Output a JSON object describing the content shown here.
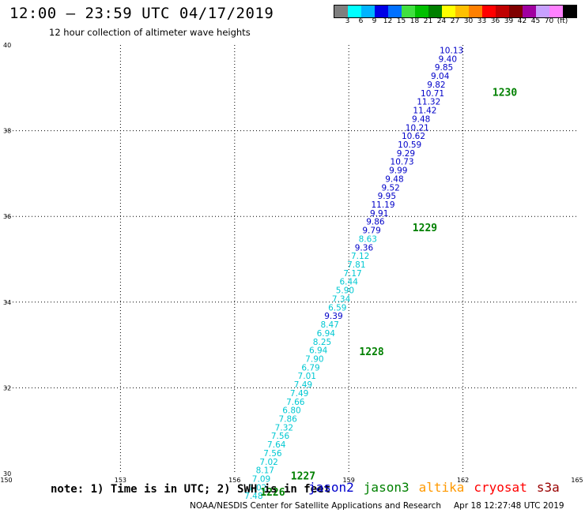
{
  "title": "12:00 – 23:59 UTC 04/17/2019",
  "subtitle": "12 hour collection of altimeter wave heights",
  "colorbar": {
    "colors": [
      "#7f7f7f",
      "#00ffff",
      "#00b4ff",
      "#0000e6",
      "#0070ff",
      "#40e040",
      "#00c000",
      "#008000",
      "#ffff00",
      "#ffc000",
      "#ff8000",
      "#ff0000",
      "#c00000",
      "#800000",
      "#a000a0",
      "#c8a0ff",
      "#ff80ff",
      "#000000"
    ],
    "ticks": [
      "3",
      "6",
      "9",
      "12",
      "15",
      "18",
      "21",
      "24",
      "27",
      "30",
      "33",
      "36",
      "39",
      "42",
      "45",
      "70",
      "(ft)"
    ]
  },
  "note": "note: 1) Time is in UTC; 2) SWH is in feet",
  "satellites": [
    {
      "name": "jason2",
      "color": "#0000cc"
    },
    {
      "name": "jason3",
      "color": "#008000"
    },
    {
      "name": "altika",
      "color": "#ff9900"
    },
    {
      "name": "cryosat",
      "color": "#ff0000"
    },
    {
      "name": "s3a",
      "color": "#990000"
    }
  ],
  "credit": "NOAA/NESDIS Center for Satellite Applications and Research",
  "timestamp": "Apr 18 12:27:48 UTC 2019",
  "chart_data": {
    "type": "scatter",
    "xlim": [
      150,
      165
    ],
    "ylim": [
      30,
      40
    ],
    "x_ticks": [
      "150",
      "153",
      "156",
      "159",
      "162",
      "165"
    ],
    "y_ticks": [
      "30",
      "32",
      "34",
      "36",
      "38",
      "40"
    ],
    "grid": true,
    "colors": {
      "light": "#00c8d2",
      "dark": "#0000c8",
      "time": "#008000"
    },
    "points": [
      {
        "x": 161.7,
        "y": 39.88,
        "v": "10.13",
        "c": "dark"
      },
      {
        "x": 161.6,
        "y": 39.68,
        "v": "9.40",
        "c": "dark"
      },
      {
        "x": 161.5,
        "y": 39.48,
        "v": "9.85",
        "c": "dark"
      },
      {
        "x": 161.4,
        "y": 39.28,
        "v": "9.04",
        "c": "dark"
      },
      {
        "x": 161.3,
        "y": 39.08,
        "v": "9.82",
        "c": "dark"
      },
      {
        "x": 161.2,
        "y": 38.88,
        "v": "10.71",
        "c": "dark"
      },
      {
        "x": 161.1,
        "y": 38.68,
        "v": "11.32",
        "c": "dark"
      },
      {
        "x": 161.0,
        "y": 38.48,
        "v": "11.42",
        "c": "dark"
      },
      {
        "x": 160.9,
        "y": 38.28,
        "v": "9.48",
        "c": "dark"
      },
      {
        "x": 160.8,
        "y": 38.08,
        "v": "10.21",
        "c": "dark"
      },
      {
        "x": 160.7,
        "y": 37.88,
        "v": "10.62",
        "c": "dark"
      },
      {
        "x": 160.6,
        "y": 37.68,
        "v": "10.59",
        "c": "dark"
      },
      {
        "x": 160.5,
        "y": 37.48,
        "v": "9.29",
        "c": "dark"
      },
      {
        "x": 160.4,
        "y": 37.28,
        "v": "10.73",
        "c": "dark"
      },
      {
        "x": 160.3,
        "y": 37.08,
        "v": "9.99",
        "c": "dark"
      },
      {
        "x": 160.2,
        "y": 36.88,
        "v": "9.48",
        "c": "dark"
      },
      {
        "x": 160.1,
        "y": 36.68,
        "v": "9.52",
        "c": "dark"
      },
      {
        "x": 160.0,
        "y": 36.48,
        "v": "9.95",
        "c": "dark"
      },
      {
        "x": 159.9,
        "y": 36.28,
        "v": "11.19",
        "c": "dark"
      },
      {
        "x": 159.8,
        "y": 36.08,
        "v": "9.91",
        "c": "dark"
      },
      {
        "x": 159.7,
        "y": 35.88,
        "v": "9.86",
        "c": "dark"
      },
      {
        "x": 159.6,
        "y": 35.68,
        "v": "9.79",
        "c": "dark"
      },
      {
        "x": 159.5,
        "y": 35.48,
        "v": "8.63",
        "c": "light"
      },
      {
        "x": 159.4,
        "y": 35.28,
        "v": "9.36",
        "c": "dark"
      },
      {
        "x": 159.3,
        "y": 35.08,
        "v": "7.12",
        "c": "light"
      },
      {
        "x": 159.2,
        "y": 34.88,
        "v": "7.81",
        "c": "light"
      },
      {
        "x": 159.1,
        "y": 34.68,
        "v": "7.17",
        "c": "light"
      },
      {
        "x": 159.0,
        "y": 34.48,
        "v": "6.44",
        "c": "light"
      },
      {
        "x": 158.9,
        "y": 34.28,
        "v": "5.90",
        "c": "light"
      },
      {
        "x": 158.8,
        "y": 34.08,
        "v": "7.34",
        "c": "light"
      },
      {
        "x": 158.7,
        "y": 33.88,
        "v": "6.59",
        "c": "light"
      },
      {
        "x": 158.6,
        "y": 33.68,
        "v": "9.39",
        "c": "dark"
      },
      {
        "x": 158.5,
        "y": 33.48,
        "v": "8.47",
        "c": "light"
      },
      {
        "x": 158.4,
        "y": 33.28,
        "v": "6.94",
        "c": "light"
      },
      {
        "x": 158.3,
        "y": 33.08,
        "v": "8.25",
        "c": "light"
      },
      {
        "x": 158.2,
        "y": 32.88,
        "v": "6.94",
        "c": "light"
      },
      {
        "x": 158.1,
        "y": 32.68,
        "v": "7.90",
        "c": "light"
      },
      {
        "x": 158.0,
        "y": 32.48,
        "v": "6.79",
        "c": "light"
      },
      {
        "x": 157.9,
        "y": 32.28,
        "v": "7.01",
        "c": "light"
      },
      {
        "x": 157.8,
        "y": 32.08,
        "v": "7.49",
        "c": "light"
      },
      {
        "x": 157.7,
        "y": 31.88,
        "v": "7.49",
        "c": "light"
      },
      {
        "x": 157.6,
        "y": 31.68,
        "v": "7.66",
        "c": "light"
      },
      {
        "x": 157.5,
        "y": 31.48,
        "v": "6.80",
        "c": "light"
      },
      {
        "x": 157.4,
        "y": 31.28,
        "v": "7.86",
        "c": "light"
      },
      {
        "x": 157.3,
        "y": 31.08,
        "v": "7.32",
        "c": "light"
      },
      {
        "x": 157.2,
        "y": 30.88,
        "v": "7.56",
        "c": "light"
      },
      {
        "x": 157.1,
        "y": 30.68,
        "v": "7.64",
        "c": "light"
      },
      {
        "x": 157.0,
        "y": 30.48,
        "v": "7.56",
        "c": "light"
      },
      {
        "x": 156.9,
        "y": 30.28,
        "v": "7.02",
        "c": "light"
      },
      {
        "x": 156.8,
        "y": 30.08,
        "v": "8.17",
        "c": "light"
      },
      {
        "x": 156.7,
        "y": 29.88,
        "v": "7.09",
        "c": "light"
      },
      {
        "x": 156.6,
        "y": 29.68,
        "v": "7.02",
        "c": "light"
      },
      {
        "x": 156.5,
        "y": 29.48,
        "v": "7.48",
        "c": "light"
      }
    ],
    "times": [
      {
        "x": 163.1,
        "y": 38.9,
        "v": "1230"
      },
      {
        "x": 161.0,
        "y": 35.75,
        "v": "1229"
      },
      {
        "x": 159.6,
        "y": 32.85,
        "v": "1228"
      },
      {
        "x": 157.8,
        "y": 29.95,
        "v": "1227"
      },
      {
        "x": 157.0,
        "y": 29.58,
        "v": "1226"
      }
    ]
  }
}
